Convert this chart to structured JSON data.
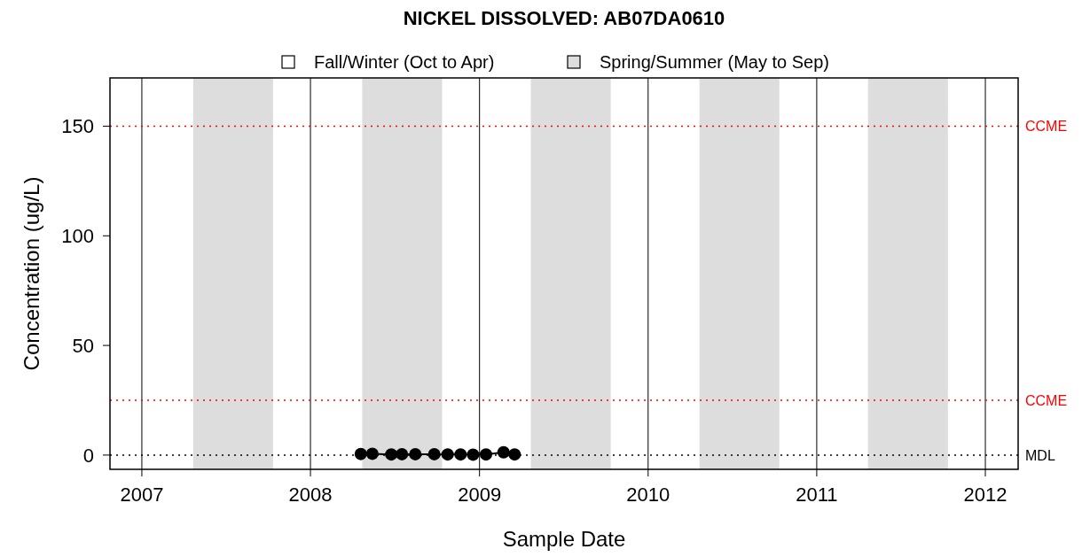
{
  "chart_data": {
    "type": "line",
    "title": "NICKEL DISSOLVED: AB07DA0610",
    "xlabel": "Sample Date",
    "ylabel": "Concentration (ug/L)",
    "x": [
      "2008-04-19",
      "2008-05-14",
      "2008-06-24",
      "2008-07-17",
      "2008-08-15",
      "2008-09-25",
      "2008-10-24",
      "2008-11-21",
      "2008-12-18",
      "2009-01-15",
      "2009-02-22",
      "2009-03-18"
    ],
    "series": [
      {
        "color": "#000000",
        "values": [
          0.5,
          0.6,
          0.3,
          0.4,
          0.4,
          0.4,
          0.3,
          0.3,
          0.2,
          0.3,
          1.3,
          0.3
        ]
      }
    ],
    "marker": "circle",
    "line_style": "solid",
    "xlim": [
      "2006-10-24",
      "2012-03-12"
    ],
    "xticks": [
      {
        "value": "2007-01-01",
        "label": "2007"
      },
      {
        "value": "2008-01-01",
        "label": "2008"
      },
      {
        "value": "2009-01-01",
        "label": "2009"
      },
      {
        "value": "2010-01-01",
        "label": "2010"
      },
      {
        "value": "2011-01-01",
        "label": "2011"
      },
      {
        "value": "2012-01-01",
        "label": "2012"
      }
    ],
    "ylim": [
      -6.5,
      172
    ],
    "yticks": [
      0,
      50,
      100,
      150
    ],
    "grid": "x",
    "ref_lines": [
      {
        "axis": "y",
        "value": 150,
        "label": "CCME",
        "color": "#ff0000",
        "line_style": "dotted"
      },
      {
        "axis": "y",
        "value": 25,
        "label": "CCME",
        "color": "#ff0000",
        "line_style": "dotted"
      },
      {
        "axis": "y",
        "value": 0,
        "label": "MDL",
        "color": "#000000",
        "line_style": "dotted"
      }
    ],
    "bands": [
      {
        "axis": "x",
        "from": "2007-04-22",
        "to": "2007-10-12",
        "color": "#dddddd"
      },
      {
        "axis": "x",
        "from": "2008-04-22",
        "to": "2008-10-12",
        "color": "#dddddd"
      },
      {
        "axis": "x",
        "from": "2009-04-22",
        "to": "2009-10-12",
        "color": "#dddddd"
      },
      {
        "axis": "x",
        "from": "2010-04-22",
        "to": "2010-10-12",
        "color": "#dddddd"
      },
      {
        "axis": "x",
        "from": "2011-04-22",
        "to": "2011-10-12",
        "color": "#dddddd"
      }
    ],
    "annotations": [
      "Fall/Winter (Oct to Apr)",
      "Spring/Summer (May to Sep)"
    ]
  }
}
